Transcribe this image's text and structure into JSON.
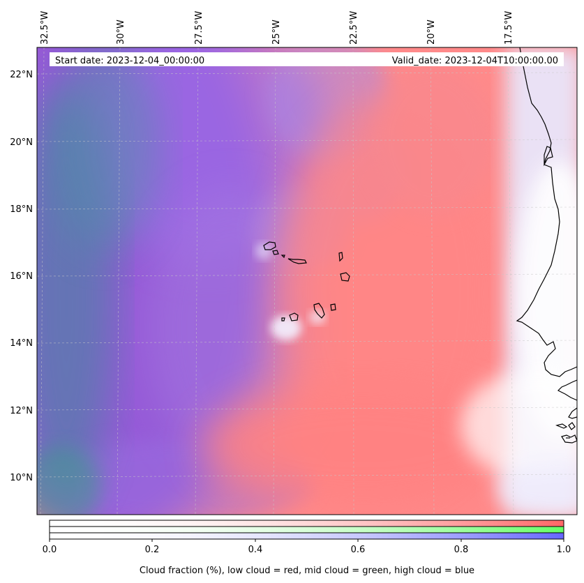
{
  "map": {
    "start_date_label": "Start date: 2023-12-04_00:00:00",
    "valid_date_label": "Valid_date: 2023-12-04T10:00:00.00",
    "lon_ticks": [
      "32.5°W",
      "30°W",
      "27.5°W",
      "25°W",
      "22.5°W",
      "20°W",
      "17.5°W"
    ],
    "lat_ticks": [
      "22°N",
      "20°N",
      "18°N",
      "16°N",
      "14°N",
      "12°N",
      "10°N"
    ],
    "layers": [
      {
        "name": "low cloud",
        "color": "#ff7f7f"
      },
      {
        "name": "mid cloud",
        "color": "#7fff7f"
      },
      {
        "name": "high cloud",
        "color": "#7f7fff"
      }
    ]
  },
  "colorbar": {
    "ticks": [
      "0.0",
      "0.2",
      "0.4",
      "0.6",
      "0.8",
      "1.0"
    ],
    "label": "Cloud fraction (%), low cloud = red, mid cloud = green, high cloud = blue",
    "colors": {
      "low": "#ff6666",
      "mid": "#66ff66",
      "high": "#6666ff"
    }
  }
}
